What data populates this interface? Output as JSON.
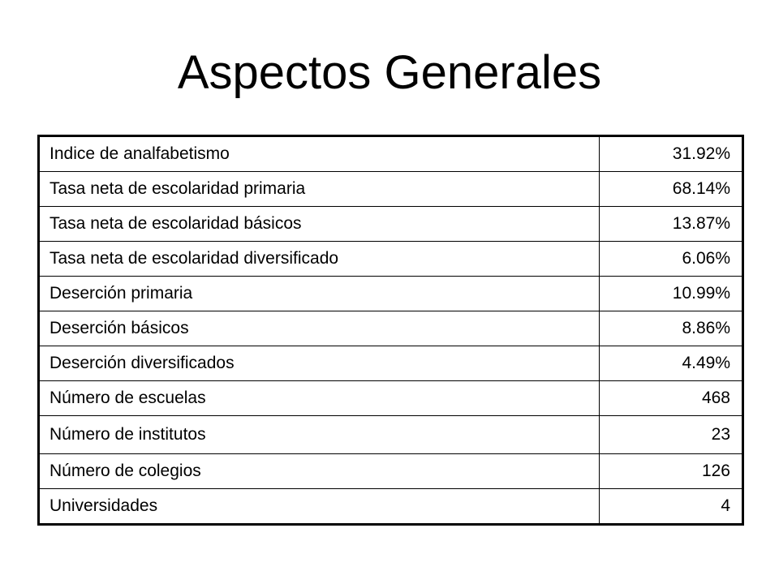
{
  "slide": {
    "title": "Aspectos Generales"
  },
  "table": {
    "rows": [
      {
        "label": "Indice de analfabetismo",
        "value": "31.92%"
      },
      {
        "label": "Tasa neta de escolaridad primaria",
        "value": "68.14%"
      },
      {
        "label": "Tasa neta de escolaridad básicos",
        "value": "13.87%"
      },
      {
        "label": "Tasa neta de escolaridad diversificado",
        "value": "6.06%"
      },
      {
        "label": "Deserción primaria",
        "value": "10.99%"
      },
      {
        "label": "Deserción básicos",
        "value": "8.86%"
      },
      {
        "label": "Deserción diversificados",
        "value": "4.49%"
      },
      {
        "label": "Número de escuelas",
        "value": "468"
      },
      {
        "label": "Número de institutos",
        "value": "23"
      },
      {
        "label": "Número de colegios",
        "value": "126"
      },
      {
        "label": "Universidades",
        "value": "4"
      }
    ]
  }
}
